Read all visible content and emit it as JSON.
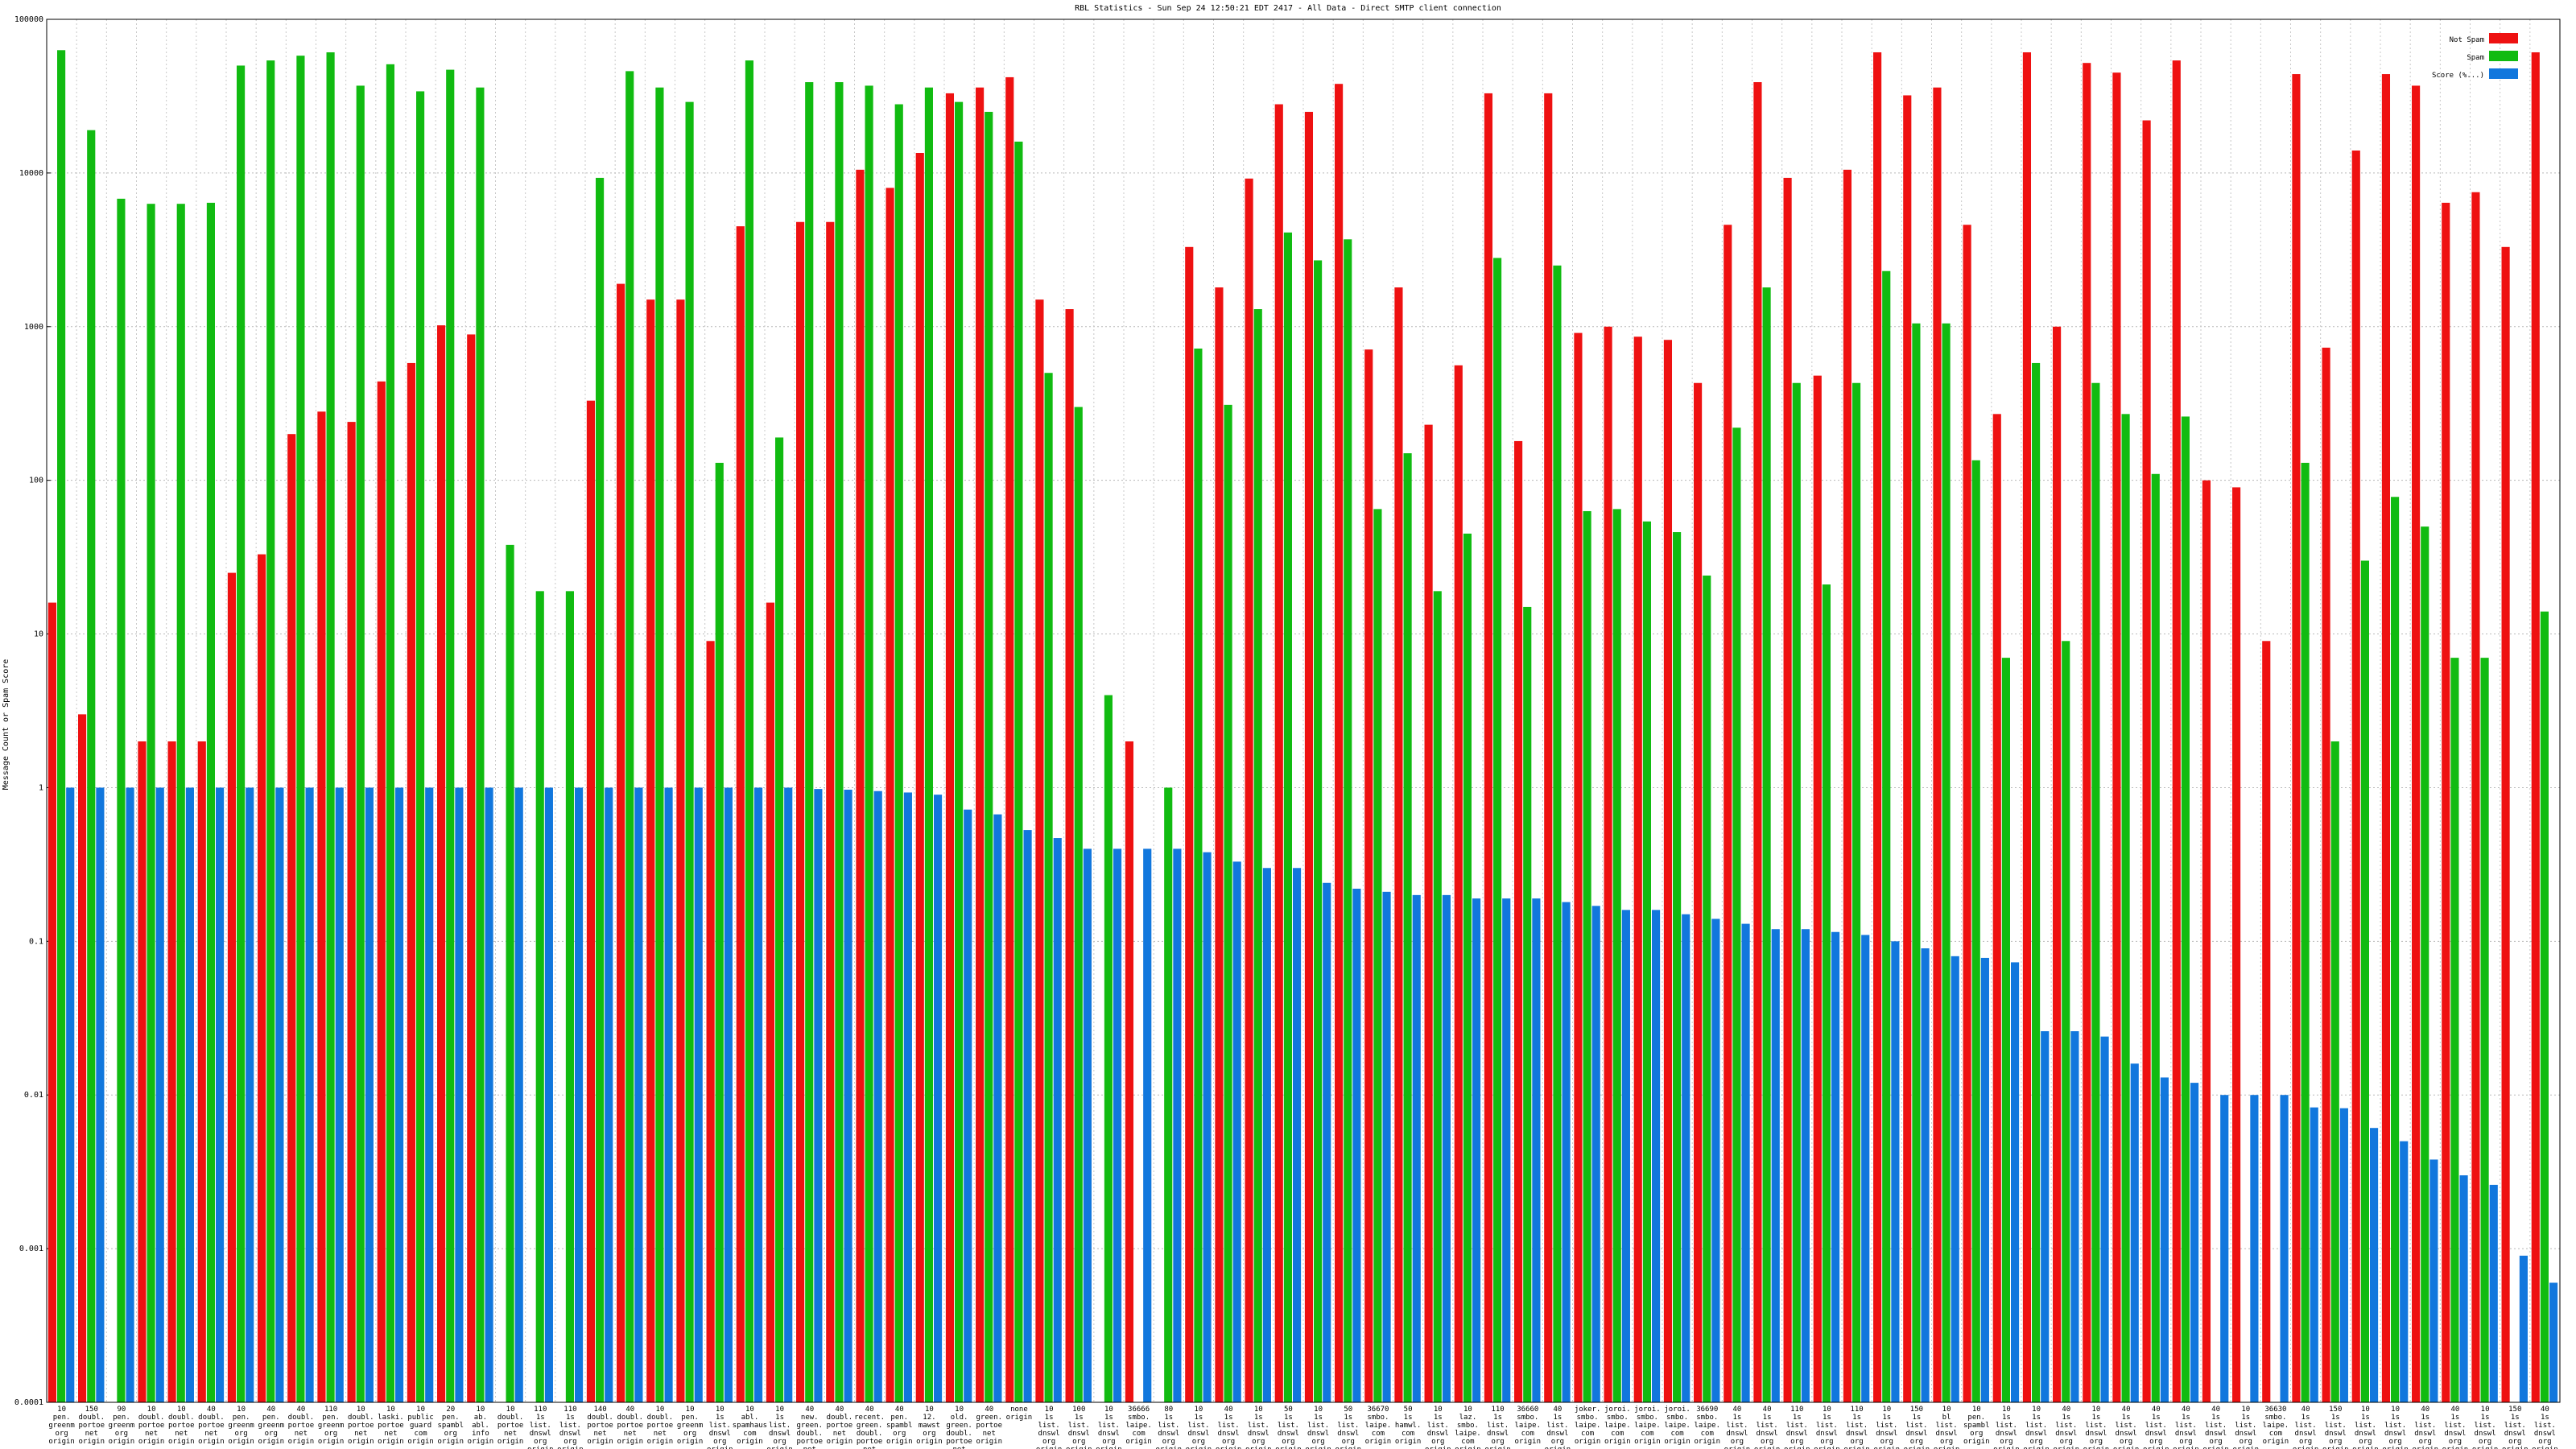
{
  "chart_data": {
    "type": "bar",
    "title": "RBL Statistics - Sun Sep 24 12:50:21 EDT 2417 - All Data - Direct SMTP client connection",
    "ylabel": "Message Count or Spam Score",
    "yscale": "log",
    "ylim": [
      0.0001,
      100000
    ],
    "yticks": [
      "0.0001",
      "0.001",
      "0.01",
      "0.1",
      "1",
      "10",
      "100",
      "1000",
      "10000",
      "100000"
    ],
    "grid": true,
    "legend": "top-right",
    "colors": {
      "Not Spam": "#ee1111",
      "Spam": "#11bb11",
      "Score": "#1177dd"
    },
    "series": [
      {
        "name": "Not Spam",
        "values": [
          16,
          3,
          null,
          2,
          2,
          2,
          25,
          33,
          200,
          280,
          240,
          440,
          580,
          1020,
          890,
          null,
          null,
          null,
          330,
          1900,
          1500,
          1500,
          9,
          4500,
          16,
          4800,
          4800,
          10500,
          8000,
          13500,
          33000,
          36000,
          42000,
          1500,
          1300,
          null,
          2,
          null,
          3300,
          1800,
          9200,
          28000,
          25000,
          38000,
          710,
          1800,
          230,
          560,
          33000,
          180,
          33000,
          910,
          1000,
          860,
          820,
          430,
          4600,
          39000,
          9300,
          480,
          10500,
          61000,
          32000,
          36000,
          4600,
          270,
          61000,
          1000,
          52000,
          45000,
          22000,
          54000,
          100,
          90,
          9,
          44000,
          730,
          14000,
          44000,
          37000,
          6400,
          7500,
          3300,
          61000
        ]
      },
      {
        "name": "Spam",
        "values": [
          63000,
          19000,
          6800,
          6300,
          6300,
          6400,
          50000,
          54000,
          58000,
          61000,
          37000,
          51000,
          34000,
          47000,
          36000,
          38,
          19,
          19,
          9300,
          46000,
          36000,
          29000,
          130,
          54000,
          190,
          39000,
          39000,
          37000,
          28000,
          36000,
          29000,
          25000,
          16000,
          500,
          300,
          4,
          null,
          1,
          720,
          310,
          1300,
          4100,
          2700,
          3700,
          65,
          150,
          19,
          45,
          2800,
          15,
          2500,
          63,
          65,
          54,
          46,
          24,
          220,
          1800,
          430,
          21,
          430,
          2300,
          1050,
          1050,
          135,
          7,
          580,
          9,
          430,
          270,
          110,
          260,
          null,
          null,
          null,
          130,
          2,
          30,
          78,
          50,
          7,
          7,
          null,
          14
        ]
      },
      {
        "name": "Score (%...)",
        "values": [
          1,
          1,
          1,
          1,
          1,
          1,
          1,
          1,
          1,
          1,
          1,
          1,
          1,
          1,
          1,
          1,
          1,
          1,
          1,
          1,
          1,
          1,
          1,
          1,
          1,
          0.98,
          0.97,
          0.95,
          0.93,
          0.9,
          0.72,
          0.67,
          0.53,
          0.47,
          0.4,
          0.4,
          0.4,
          0.4,
          0.38,
          0.33,
          0.3,
          0.3,
          0.24,
          0.22,
          0.21,
          0.2,
          0.2,
          0.19,
          0.19,
          0.19,
          0.18,
          0.17,
          0.16,
          0.16,
          0.15,
          0.14,
          0.13,
          0.12,
          0.12,
          0.115,
          0.11,
          0.1,
          0.09,
          0.08,
          0.078,
          0.073,
          0.026,
          0.026,
          0.024,
          0.016,
          0.013,
          0.012,
          0.01,
          0.01,
          0.01,
          0.0083,
          0.0082,
          0.0061,
          0.005,
          0.0038,
          0.003,
          0.0026,
          0.0009,
          0.0006
        ]
      }
    ],
    "categories": [
      "10\npen.\ngreenm\norg\norigin",
      "150\ndoubl.\nportoe\nnet\norigin",
      "90\npen.\ngreenm\norg\norigin",
      "10\ndoubl.\nportoe\nnet\norigin",
      "10\ndoubl.\nportoe\nnet\norigin",
      "40\ndoubl.\nportoe\nnet\norigin",
      "10\npen.\ngreenm\norg\norigin",
      "40\npen.\ngreenm\norg\norigin",
      "40\ndoubl.\nportoe\nnet\norigin",
      "110\npen.\ngreenm\norg\norigin",
      "10\ndoubl.\nportoe\nnet\norigin",
      "10\nlaski.\nportoe\nnet\norigin",
      "10\npublic\nguard\ncom\norigin",
      "20\npen.\nspambl\norg\norigin",
      "10\nab.\nabl.\ninfo\norigin",
      "10\ndoubl.\nportoe\nnet\norigin",
      "110\n1s\nlist.\ndnswl\norg\norigin",
      "110\n1s\nlist.\ndnswl\norg\norigin",
      "140\ndoubl.\nportoe\nnet\norigin",
      "40\ndoubl.\nportoe\nnet\norigin",
      "10\ndoubl.\nportoe\nnet\norigin",
      "10\npen.\ngreenm\norg\norigin",
      "10\n1s\nlist.\ndnswl\norg\norigin",
      "10\nabl.\nspamhaus\ncom\norigin",
      "10\n1s\nlist.\ndnswl\norg\norigin",
      "40\nnew.\ngreen.\ndoubl.\nportoe\nnet\norigin",
      "40\ndoubl.\nportoe\nnet\norigin",
      "40\nrecent.\ngreen.\ndoubl.\nportoe\nnet\norigin",
      "40\npen.\nspambl\norg\norigin",
      "10\n12.\nmawst\norg\norigin",
      "10\nold.\ngreen.\ndoubl.\nportoe\nnet\norigin",
      "40\ngreen.\nportoe\nnet\norigin",
      "none\norigin",
      "10\n1s\nlist.\ndnswl\norg\norigin",
      "100\n1s\nlist.\ndnswl\norg\norigin",
      "10\n1s\nlist.\ndnswl\norg\norigin",
      "36666\nsmbo.\nlaipe.\ncom\norigin",
      "80\n1s\nlist.\ndnswl\norg\norigin",
      "10\n1s\nlist.\ndnswl\norg\norigin",
      "40\n1s\nlist.\ndnswl\norg\norigin",
      "10\n1s\nlist.\ndnswl\norg\norigin",
      "50\n1s\nlist.\ndnswl\norg\norigin",
      "10\n1s\nlist.\ndnswl\norg\norigin",
      "50\n1s\nlist.\ndnswl\norg\norigin",
      "36670\nsmbo.\nlaipe.\ncom\norigin",
      "50\n1s\nhamwl.\ncom\norigin",
      "10\n1s\nlist.\ndnswl\norg\norigin",
      "10\nlaz.\nsmbo.\nlaipe.\ncom\norigin",
      "110\n1s\nlist.\ndnswl\norg\norigin",
      "36660\nsmbo.\nlaipe.\ncom\norigin",
      "40\n1s\nlist.\ndnswl\norg\norigin",
      "joker.\nsmbo.\nlaipe.\ncom\norigin",
      "joroi.\nsmbo.\nlaipe.\ncom\norigin",
      "joroi.\nsmbo.\nlaipe.\ncom\norigin",
      "joroi.\nsmbo.\nlaipe.\ncom\norigin",
      "36690\nsmbo.\nlaipe.\ncom\norigin",
      "40\n1s\nlist.\ndnswl\norg\norigin",
      "40\n1s\nlist.\ndnswl\norg\norigin",
      "110\n1s\nlist.\ndnswl\norg\norigin",
      "10\n1s\nlist.\ndnswl\norg\norigin",
      "110\n1s\nlist.\ndnswl\norg\norigin",
      "10\n1s\nlist.\ndnswl\norg\norigin",
      "150\n1s\nlist.\ndnswl\norg\norigin",
      "10\nbl\nlist.\ndnswl\norg\norigin",
      "10\npen.\nspambl\norg\norigin",
      "10\n1s\nlist.\ndnswl\norg\norigin",
      "10\n1s\nlist.\ndnswl\norg\norigin",
      "40\n1s\nlist.\ndnswl\norg\norigin",
      "10\n1s\nlist.\ndnswl\norg\norigin",
      "40\n1s\nlist.\ndnswl\norg\norigin",
      "40\n1s\nlist.\ndnswl\norg\norigin",
      "40\n1s\nlist.\ndnswl\norg\norigin",
      "40\n1s\nlist.\ndnswl\norg\norigin",
      "10\n1s\nlist.\ndnswl\norg\norigin",
      "36630\nsmbo.\nlaipe.\ncom\norigin",
      "40\n1s\nlist.\ndnswl\norg\norigin",
      "150\n1s\nlist.\ndnswl\norg\norigin",
      "10\n1s\nlist.\ndnswl\norg\norigin",
      "10\n1s\nlist.\ndnswl\norg\norigin",
      "40\n1s\nlist.\ndnswl\norg\norigin",
      "40\n1s\nlist.\ndnswl\norg\norigin",
      "10\n1s\nlist.\ndnswl\norg\norigin",
      "150\n1s\nlist.\ndnswl\norg\norigin",
      "40\n1s\nlist.\ndnswl\norg\norigin"
    ]
  }
}
